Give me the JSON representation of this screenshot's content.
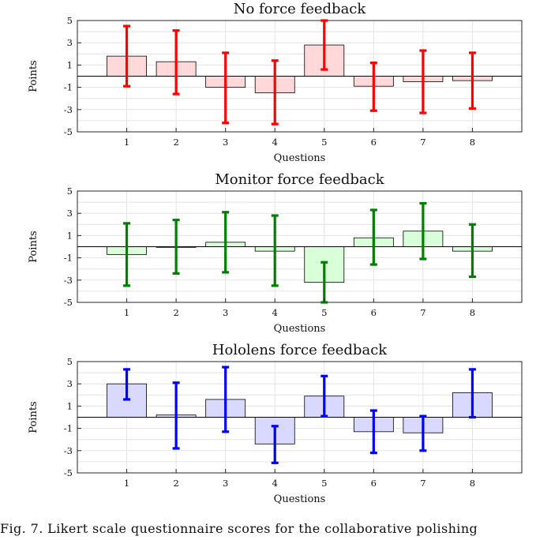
{
  "caption": "Fig. 7.  Likert scale questionnaire scores for the collaborative polishing",
  "chart_data": [
    {
      "type": "bar",
      "title": "No force feedback",
      "xlabel": "Questions",
      "ylabel": "Points",
      "categories": [
        "1",
        "2",
        "3",
        "4",
        "5",
        "6",
        "7",
        "8"
      ],
      "values": [
        1.8,
        1.3,
        -1.0,
        -1.5,
        2.8,
        -0.9,
        -0.5,
        -0.4
      ],
      "err_low": [
        -0.9,
        -1.6,
        -4.2,
        -4.3,
        0.6,
        -3.1,
        -3.3,
        -2.9
      ],
      "err_high": [
        4.5,
        4.1,
        2.1,
        1.4,
        5.0,
        1.2,
        2.3,
        2.1
      ],
      "ylim": [
        -5,
        5
      ],
      "yticks": [
        "-5",
        "-3",
        "-1",
        "1",
        "3",
        "5"
      ],
      "grid": true,
      "bar_color": "#ffd9d9",
      "error_color": "#ff0000"
    },
    {
      "type": "bar",
      "title": "Monitor force feedback",
      "xlabel": "Questions",
      "ylabel": "Points",
      "categories": [
        "1",
        "2",
        "3",
        "4",
        "5",
        "6",
        "7",
        "8"
      ],
      "values": [
        -0.7,
        0.0,
        0.4,
        -0.4,
        -3.2,
        0.8,
        1.4,
        -0.4
      ],
      "err_low": [
        -3.5,
        -2.4,
        -2.3,
        -3.5,
        -5.0,
        -1.6,
        -1.1,
        -2.7
      ],
      "err_high": [
        2.1,
        2.4,
        3.1,
        2.8,
        -1.4,
        3.3,
        3.9,
        2.0
      ],
      "ylim": [
        -5,
        5
      ],
      "yticks": [
        "-5",
        "-3",
        "-1",
        "1",
        "3",
        "5"
      ],
      "grid": true,
      "bar_color": "#d9ffd9",
      "error_color": "#007f00"
    },
    {
      "type": "bar",
      "title": "Hololens force feedback",
      "xlabel": "Questions",
      "ylabel": "Points",
      "categories": [
        "1",
        "2",
        "3",
        "4",
        "5",
        "6",
        "7",
        "8"
      ],
      "values": [
        3.0,
        0.2,
        1.6,
        -2.4,
        1.9,
        -1.3,
        -1.4,
        2.2
      ],
      "err_low": [
        1.6,
        -2.8,
        -1.3,
        -4.1,
        0.1,
        -3.2,
        -3.0,
        0.0
      ],
      "err_high": [
        4.3,
        3.1,
        4.5,
        -0.8,
        3.7,
        0.6,
        0.1,
        4.3
      ],
      "ylim": [
        -5,
        5
      ],
      "yticks": [
        "-5",
        "-3",
        "-1",
        "1",
        "3",
        "5"
      ],
      "grid": true,
      "bar_color": "#d9d9ff",
      "error_color": "#0000ff"
    }
  ]
}
